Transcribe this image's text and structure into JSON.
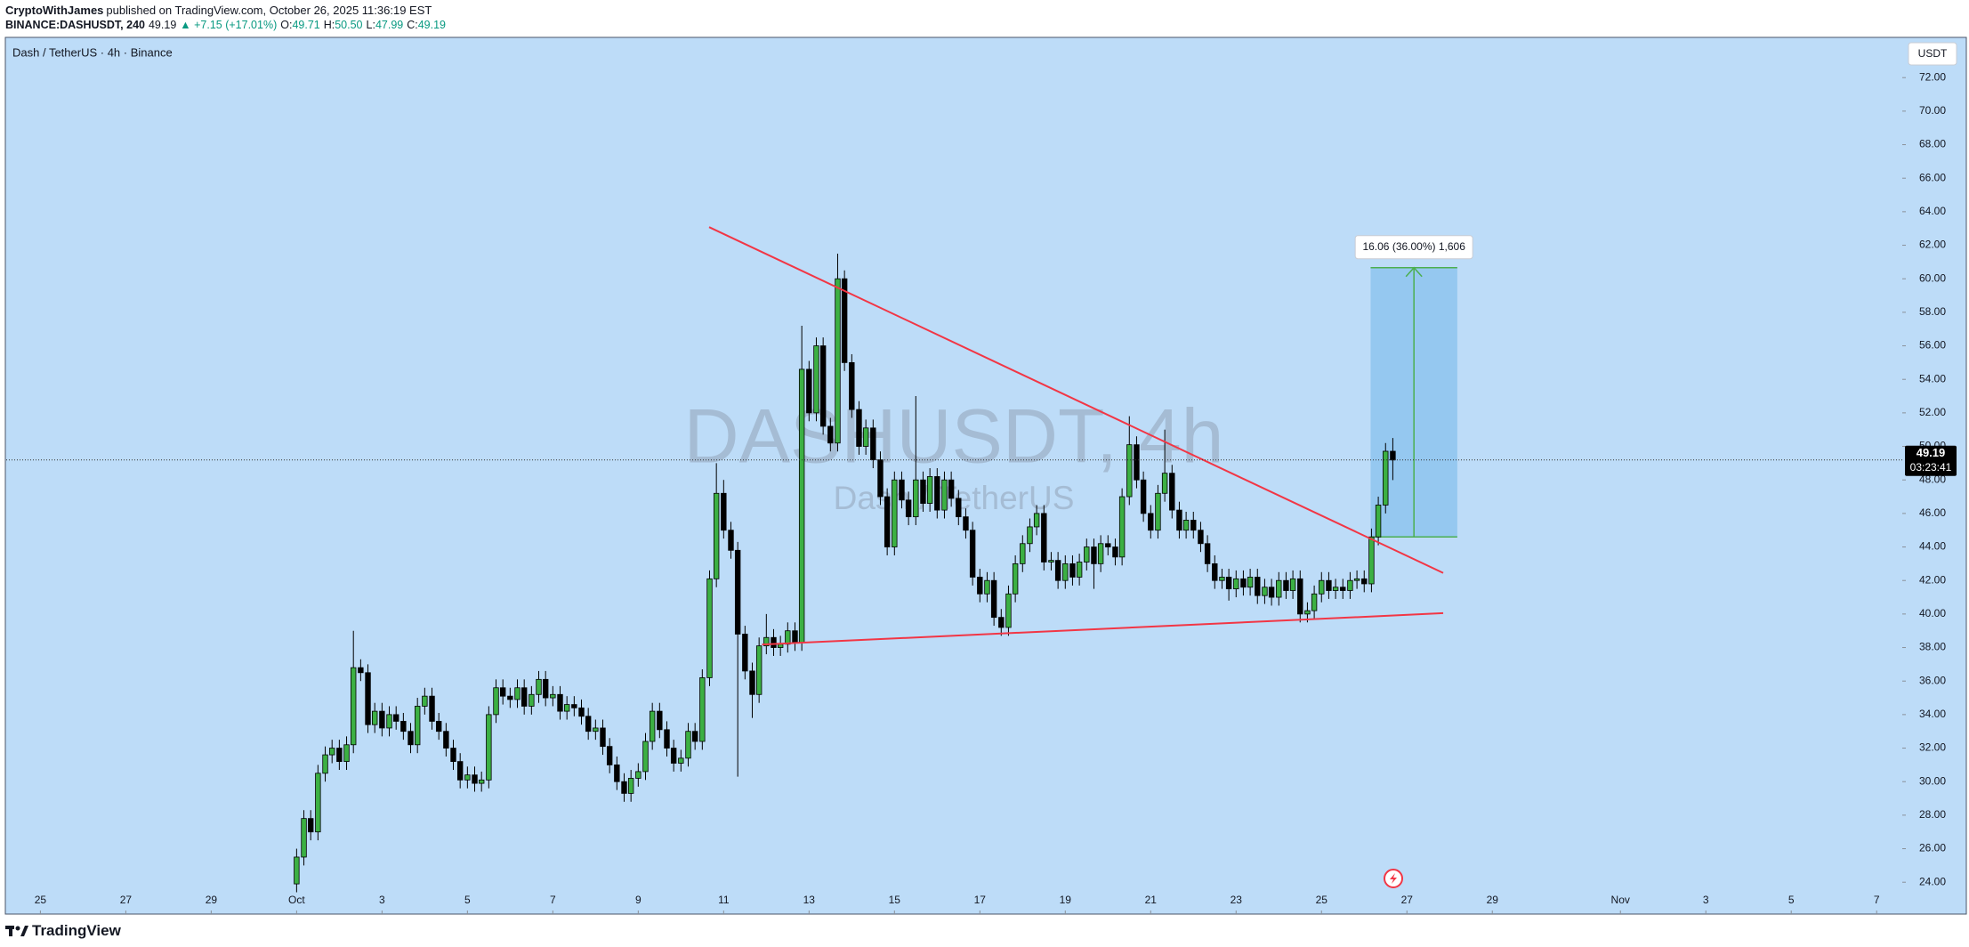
{
  "header": {
    "author": "CryptoWithJames",
    "published": "published on TradingView.com, October 26, 2025 11:36:19 EST",
    "symbol": "BINANCE:DASHUSDT, 240",
    "last": "49.19",
    "change": "▲ +7.15 (+17.01%)",
    "ohlc": [
      {
        "label": "O:",
        "value": "49.71"
      },
      {
        "label": "H:",
        "value": "50.50"
      },
      {
        "label": "L:",
        "value": "47.99"
      },
      {
        "label": "C:",
        "value": "49.19"
      }
    ]
  },
  "footer": {
    "brand": "TradingView"
  },
  "chart_data": {
    "type": "candlestick",
    "title": "Dash / TetherUS · 4h · Binance",
    "currency": "USDT",
    "watermark": [
      "DASHUSDT, 4h",
      "Dash / TetherUS"
    ],
    "background": "#bddcf8",
    "colors": {
      "up": "#3cb043",
      "down": "#000000",
      "trendline": "#f23645"
    },
    "xlim": [
      -0.8,
      43.6
    ],
    "ylim": [
      22.1,
      74.4
    ],
    "xticks": [
      {
        "value": 0,
        "label": "25"
      },
      {
        "value": 2,
        "label": "27"
      },
      {
        "value": 4,
        "label": "29"
      },
      {
        "value": 6,
        "label": "Oct"
      },
      {
        "value": 8,
        "label": "3"
      },
      {
        "value": 10,
        "label": "5"
      },
      {
        "value": 12,
        "label": "7"
      },
      {
        "value": 14,
        "label": "9"
      },
      {
        "value": 16,
        "label": "11"
      },
      {
        "value": 18,
        "label": "13"
      },
      {
        "value": 20,
        "label": "15"
      },
      {
        "value": 22,
        "label": "17"
      },
      {
        "value": 24,
        "label": "19"
      },
      {
        "value": 26,
        "label": "21"
      },
      {
        "value": 28,
        "label": "23"
      },
      {
        "value": 30,
        "label": "25"
      },
      {
        "value": 32,
        "label": "27"
      },
      {
        "value": 34,
        "label": "29"
      },
      {
        "value": 37,
        "label": "Nov"
      },
      {
        "value": 39,
        "label": "3"
      },
      {
        "value": 41,
        "label": "5"
      },
      {
        "value": 43,
        "label": "7"
      }
    ],
    "yticks": [
      {
        "value": 24,
        "label": "24.00"
      },
      {
        "value": 26,
        "label": "26.00"
      },
      {
        "value": 28,
        "label": "28.00"
      },
      {
        "value": 30,
        "label": "30.00"
      },
      {
        "value": 32,
        "label": "32.00"
      },
      {
        "value": 34,
        "label": "34.00"
      },
      {
        "value": 36,
        "label": "36.00"
      },
      {
        "value": 38,
        "label": "38.00"
      },
      {
        "value": 40,
        "label": "40.00"
      },
      {
        "value": 42,
        "label": "42.00"
      },
      {
        "value": 44,
        "label": "44.00"
      },
      {
        "value": 46,
        "label": "46.00"
      },
      {
        "value": 48,
        "label": "48.00"
      },
      {
        "value": 50,
        "label": "50.00"
      },
      {
        "value": 52,
        "label": "52.00"
      },
      {
        "value": 54,
        "label": "54.00"
      },
      {
        "value": 56,
        "label": "56.00"
      },
      {
        "value": 58,
        "label": "58.00"
      },
      {
        "value": 60,
        "label": "60.00"
      },
      {
        "value": 62,
        "label": "62.00"
      },
      {
        "value": 64,
        "label": "64.00"
      },
      {
        "value": 66,
        "label": "66.00"
      },
      {
        "value": 68,
        "label": "68.00"
      },
      {
        "value": 70,
        "label": "70.00"
      },
      {
        "value": 72,
        "label": "72.00"
      }
    ],
    "x": [
      6,
      6.17,
      6.33,
      6.5,
      6.67,
      6.83,
      7,
      7.17,
      7.33,
      7.5,
      7.67,
      7.83,
      8,
      8.17,
      8.33,
      8.5,
      8.67,
      8.83,
      9,
      9.17,
      9.33,
      9.5,
      9.67,
      9.83,
      10,
      10.17,
      10.33,
      10.5,
      10.67,
      10.83,
      11,
      11.17,
      11.33,
      11.5,
      11.67,
      11.83,
      12,
      12.17,
      12.33,
      12.5,
      12.67,
      12.83,
      13,
      13.17,
      13.33,
      13.5,
      13.67,
      13.83,
      14,
      14.17,
      14.33,
      14.5,
      14.67,
      14.83,
      15,
      15.17,
      15.33,
      15.5,
      15.67,
      15.83,
      16,
      16.17,
      16.33,
      16.5,
      16.67,
      16.83,
      17,
      17.17,
      17.33,
      17.5,
      17.67,
      17.83,
      18,
      18.17,
      18.33,
      18.5,
      18.67,
      18.83,
      19,
      19.17,
      19.33,
      19.5,
      19.67,
      19.83,
      20,
      20.17,
      20.33,
      20.5,
      20.67,
      20.83,
      21,
      21.17,
      21.33,
      21.5,
      21.67,
      21.83,
      22,
      22.17,
      22.33,
      22.5,
      22.67,
      22.83,
      23,
      23.17,
      23.33,
      23.5,
      23.67,
      23.83,
      24,
      24.17,
      24.33,
      24.5,
      24.67,
      24.83,
      25,
      25.17,
      25.33,
      25.5,
      25.67,
      25.83,
      26,
      26.17,
      26.33,
      26.5,
      26.67,
      26.83,
      27,
      27.17,
      27.33,
      27.5,
      27.67,
      27.83,
      28,
      28.17,
      28.33,
      28.5,
      28.67,
      28.83,
      29,
      29.17,
      29.33,
      29.5,
      29.67,
      29.83,
      30,
      30.17,
      30.33,
      30.5,
      30.67,
      30.83,
      31,
      31.17,
      31.33,
      31.5,
      31.67
    ],
    "open": [
      23.9,
      25.5,
      27.8,
      27.0,
      30.5,
      31.6,
      32.0,
      31.2,
      32.2,
      36.8,
      36.5,
      33.4,
      34.2,
      33.2,
      34.0,
      33.6,
      33.0,
      32.2,
      34.5,
      35.1,
      33.6,
      33.0,
      32.0,
      31.2,
      30.1,
      30.4,
      29.9,
      30.1,
      34.0,
      35.6,
      35.1,
      34.9,
      35.6,
      34.5,
      35.2,
      36.1,
      35.0,
      35.2,
      34.2,
      34.6,
      34.4,
      33.9,
      33.0,
      33.2,
      32.1,
      31.0,
      30.0,
      29.3,
      30.2,
      30.6,
      32.4,
      34.2,
      33.1,
      32.0,
      31.1,
      31.4,
      33.0,
      32.4,
      36.2,
      42.1,
      47.2,
      45.0,
      43.8,
      38.8,
      36.6,
      35.2,
      38.1,
      38.6,
      38.0,
      38.2,
      39.0,
      38.3,
      54.6,
      52.0,
      56.0,
      51.2,
      50.2,
      60.0,
      55.0,
      52.2,
      50.0,
      51.1,
      49.2,
      47.0,
      44.0,
      48.0,
      46.8,
      45.8,
      48.0,
      46.6,
      48.2,
      46.2,
      48.0,
      46.9,
      45.8,
      45.0,
      42.2,
      41.2,
      42.0,
      39.8,
      39.2,
      41.2,
      43.0,
      44.2,
      45.2,
      46.0,
      43.1,
      43.2,
      42.0,
      43.0,
      42.2,
      43.1,
      44.0,
      43.0,
      44.2,
      44.0,
      43.4,
      47.0,
      50.1,
      48.0,
      46.0,
      45.0,
      47.2,
      48.4,
      46.2,
      45.0,
      45.6,
      45.0,
      44.2,
      43.0,
      42.0,
      42.2,
      41.5,
      42.1,
      41.6,
      42.2,
      41.1,
      41.6,
      41.0,
      42.0,
      41.4,
      42.1,
      40.0,
      40.2,
      41.2,
      42.0,
      41.4,
      41.6,
      41.4,
      42.0,
      42.1,
      41.8,
      44.6,
      46.5,
      49.71
    ],
    "high": [
      26.0,
      28.3,
      28.3,
      31.0,
      32.1,
      32.5,
      32.5,
      32.7,
      39.0,
      37.3,
      37.0,
      34.7,
      34.7,
      34.5,
      34.5,
      34.1,
      33.5,
      35.0,
      35.6,
      35.6,
      34.1,
      33.5,
      32.5,
      31.7,
      30.9,
      30.9,
      30.6,
      34.5,
      36.1,
      36.1,
      35.6,
      36.1,
      36.1,
      35.7,
      36.6,
      36.6,
      35.7,
      35.7,
      35.1,
      35.1,
      34.9,
      34.4,
      33.7,
      33.7,
      32.6,
      31.5,
      30.5,
      30.7,
      31.1,
      32.9,
      34.7,
      34.7,
      33.6,
      32.5,
      31.9,
      33.5,
      33.5,
      36.7,
      42.6,
      49.0,
      48.0,
      45.5,
      44.3,
      39.3,
      37.1,
      38.6,
      40.0,
      39.1,
      38.7,
      39.5,
      39.5,
      57.2,
      55.1,
      56.5,
      56.5,
      51.7,
      61.5,
      60.5,
      55.5,
      52.7,
      51.6,
      51.6,
      49.7,
      47.5,
      48.5,
      48.5,
      47.3,
      53.0,
      48.5,
      48.7,
      48.7,
      48.5,
      48.5,
      47.4,
      46.3,
      45.5,
      42.7,
      42.5,
      42.5,
      40.3,
      41.7,
      43.5,
      44.7,
      45.7,
      46.5,
      46.5,
      43.7,
      43.7,
      43.5,
      43.5,
      43.6,
      44.5,
      44.5,
      44.7,
      44.7,
      44.5,
      47.5,
      51.8,
      50.6,
      48.5,
      46.5,
      47.7,
      51.0,
      48.9,
      46.7,
      46.1,
      46.1,
      45.5,
      44.7,
      43.5,
      42.7,
      42.7,
      42.6,
      42.6,
      42.7,
      42.7,
      42.1,
      42.1,
      42.5,
      42.5,
      42.6,
      42.6,
      40.7,
      41.7,
      42.5,
      42.5,
      42.1,
      42.1,
      42.5,
      42.6,
      42.6,
      45.1,
      47.0,
      50.2,
      50.5
    ],
    "low": [
      23.4,
      25.0,
      26.5,
      26.5,
      30.0,
      31.1,
      30.7,
      30.7,
      31.7,
      36.0,
      32.9,
      32.9,
      32.7,
      32.7,
      33.1,
      32.5,
      31.7,
      31.7,
      34.0,
      33.1,
      32.5,
      31.5,
      30.7,
      29.6,
      29.6,
      29.4,
      29.4,
      29.6,
      33.5,
      34.6,
      34.4,
      34.4,
      34.0,
      34.0,
      34.7,
      34.5,
      34.5,
      33.7,
      33.7,
      33.9,
      33.4,
      32.5,
      32.5,
      31.6,
      30.5,
      29.5,
      28.8,
      28.8,
      29.7,
      30.1,
      31.9,
      32.6,
      31.5,
      30.6,
      30.6,
      30.9,
      31.9,
      31.9,
      35.7,
      41.6,
      44.5,
      43.3,
      30.3,
      36.1,
      33.8,
      34.7,
      37.6,
      37.5,
      37.5,
      37.7,
      37.8,
      37.8,
      51.5,
      51.5,
      50.7,
      49.7,
      49.7,
      54.5,
      51.7,
      49.5,
      49.5,
      48.7,
      46.5,
      43.5,
      43.5,
      46.3,
      45.3,
      45.3,
      46.1,
      46.1,
      45.7,
      45.7,
      46.4,
      45.3,
      44.5,
      41.7,
      40.7,
      40.7,
      39.3,
      38.7,
      38.7,
      40.7,
      42.5,
      43.7,
      44.7,
      42.6,
      42.6,
      41.5,
      41.5,
      41.7,
      41.7,
      42.6,
      41.5,
      42.5,
      43.5,
      42.9,
      42.9,
      46.5,
      47.5,
      45.5,
      44.5,
      44.5,
      46.7,
      45.7,
      44.5,
      44.5,
      44.5,
      43.7,
      42.5,
      41.5,
      41.5,
      40.8,
      41.0,
      41.1,
      41.1,
      40.6,
      40.6,
      40.5,
      40.5,
      40.9,
      40.9,
      39.5,
      39.5,
      39.7,
      40.7,
      40.9,
      40.9,
      40.9,
      40.9,
      41.5,
      41.3,
      41.3,
      44.1,
      46.0,
      47.99
    ],
    "close": [
      25.5,
      27.8,
      27.0,
      30.5,
      31.6,
      32.0,
      31.2,
      32.2,
      36.8,
      36.5,
      33.4,
      34.2,
      33.2,
      34.0,
      33.6,
      33.0,
      32.2,
      34.5,
      35.1,
      33.6,
      33.0,
      32.0,
      31.2,
      30.1,
      30.4,
      29.9,
      30.1,
      34.0,
      35.6,
      35.1,
      34.9,
      35.6,
      34.5,
      35.2,
      36.1,
      35.0,
      35.2,
      34.2,
      34.6,
      34.4,
      33.9,
      33.0,
      33.2,
      32.1,
      31.0,
      30.0,
      29.3,
      30.2,
      30.6,
      32.4,
      34.2,
      33.1,
      32.0,
      31.1,
      31.4,
      33.0,
      32.4,
      36.2,
      42.1,
      47.2,
      45.0,
      43.8,
      38.8,
      36.6,
      35.2,
      38.1,
      38.6,
      38.0,
      38.2,
      39.0,
      38.3,
      54.6,
      52.0,
      56.0,
      51.2,
      50.2,
      60.0,
      55.0,
      52.2,
      50.0,
      51.1,
      49.2,
      47.0,
      44.0,
      48.0,
      46.8,
      45.8,
      48.0,
      46.6,
      48.2,
      46.2,
      48.0,
      46.9,
      45.8,
      45.0,
      42.2,
      41.2,
      42.0,
      39.8,
      39.2,
      41.2,
      43.0,
      44.2,
      45.2,
      46.0,
      43.1,
      43.2,
      42.0,
      43.0,
      42.2,
      43.1,
      44.0,
      43.0,
      44.2,
      44.0,
      43.4,
      47.0,
      50.1,
      48.0,
      46.0,
      45.0,
      47.2,
      48.4,
      46.2,
      45.0,
      45.6,
      45.0,
      44.2,
      43.0,
      42.0,
      42.2,
      41.5,
      42.1,
      41.6,
      42.2,
      41.1,
      41.6,
      41.0,
      42.0,
      41.4,
      42.1,
      40.0,
      40.2,
      41.2,
      42.0,
      41.4,
      41.6,
      41.4,
      42.0,
      42.1,
      41.8,
      44.6,
      46.5,
      49.71,
      49.19
    ],
    "trendlines": [
      {
        "x": [
          15.66,
          32.85
        ],
        "y": [
          63.08,
          42.45
        ]
      },
      {
        "x": [
          16.9,
          32.85
        ],
        "y": [
          38.18,
          40.05
        ]
      }
    ],
    "position": {
      "x": [
        31.15,
        33.18
      ],
      "entry": 44.6,
      "target": 60.66,
      "label": "16.06 (36.00%) 1,606"
    },
    "last_price": 49.19,
    "countdown": "03:23:41"
  }
}
